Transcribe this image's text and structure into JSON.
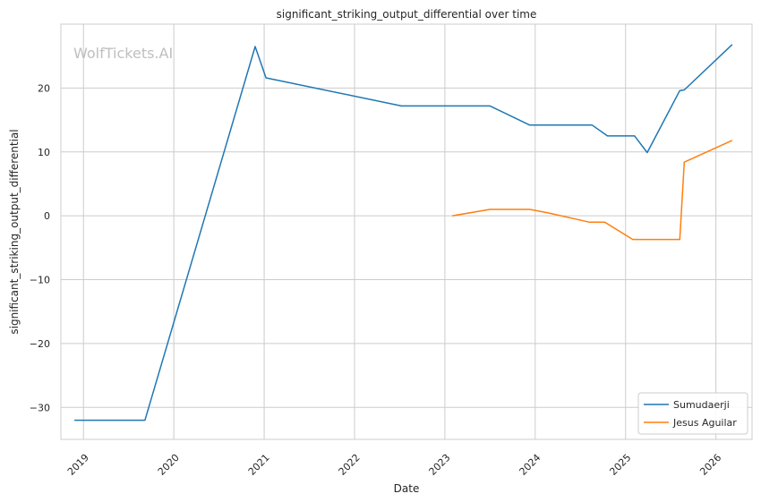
{
  "chart_data": {
    "type": "line",
    "title": "significant_striking_output_differential over time",
    "xlabel": "Date",
    "ylabel": "significant_striking_output_differential",
    "watermark": "WolfTickets.AI",
    "xlim": [
      2018.75,
      2026.4
    ],
    "ylim": [
      -35,
      30
    ],
    "x_ticks": [
      {
        "value": 2019,
        "label": "2019"
      },
      {
        "value": 2020,
        "label": "2020"
      },
      {
        "value": 2021,
        "label": "2021"
      },
      {
        "value": 2022,
        "label": "2022"
      },
      {
        "value": 2023,
        "label": "2023"
      },
      {
        "value": 2024,
        "label": "2024"
      },
      {
        "value": 2025,
        "label": "2025"
      },
      {
        "value": 2026,
        "label": "2026"
      }
    ],
    "y_ticks": [
      {
        "value": 20,
        "label": "20"
      },
      {
        "value": 10,
        "label": "10"
      },
      {
        "value": 0,
        "label": "0"
      },
      {
        "value": -10,
        "label": "−10"
      },
      {
        "value": -20,
        "label": "−20"
      },
      {
        "value": -30,
        "label": "−30"
      }
    ],
    "grid": true,
    "legend_position": "bottom-right",
    "series": [
      {
        "name": "Sumudaerji",
        "color": "#1f77b4",
        "points": [
          [
            2018.9,
            -32
          ],
          [
            2019.68,
            -32
          ],
          [
            2020.9,
            26.5
          ],
          [
            2021.02,
            21.6
          ],
          [
            2022.52,
            17.2
          ],
          [
            2023.5,
            17.2
          ],
          [
            2023.94,
            14.2
          ],
          [
            2024.63,
            14.2
          ],
          [
            2024.8,
            12.5
          ],
          [
            2025.1,
            12.5
          ],
          [
            2025.24,
            9.9
          ],
          [
            2025.6,
            19.6
          ],
          [
            2025.65,
            19.7
          ],
          [
            2026.18,
            26.8
          ]
        ]
      },
      {
        "name": "Jesus Aguilar",
        "color": "#ff7f0e",
        "points": [
          [
            2023.08,
            0
          ],
          [
            2023.5,
            1.0
          ],
          [
            2023.94,
            1.0
          ],
          [
            2024.13,
            0.5
          ],
          [
            2024.6,
            -1.0
          ],
          [
            2024.77,
            -1.0
          ],
          [
            2025.08,
            -3.7
          ],
          [
            2025.6,
            -3.7
          ],
          [
            2025.65,
            8.4
          ],
          [
            2026.18,
            11.8
          ]
        ]
      }
    ]
  }
}
